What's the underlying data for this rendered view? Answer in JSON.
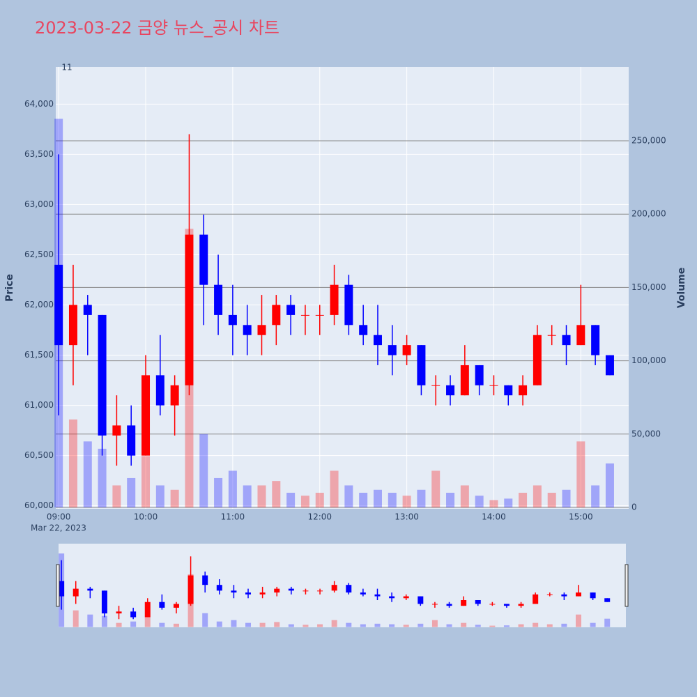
{
  "chart_data": {
    "type": "candlestick",
    "title": "2023-03-22 금양 뉴스_공시 차트",
    "x": [
      "2023-03-22 09:00",
      "2023-03-22 09:10",
      "2023-03-22 09:20",
      "2023-03-22 09:30",
      "2023-03-22 09:40",
      "2023-03-22 09:50",
      "2023-03-22 10:00",
      "2023-03-22 10:10",
      "2023-03-22 10:20",
      "2023-03-22 10:30",
      "2023-03-22 10:40",
      "2023-03-22 10:50",
      "2023-03-22 11:00",
      "2023-03-22 11:10",
      "2023-03-22 11:20",
      "2023-03-22 11:30",
      "2023-03-22 11:40",
      "2023-03-22 11:50",
      "2023-03-22 12:00",
      "2023-03-22 12:10",
      "2023-03-22 12:20",
      "2023-03-22 12:30",
      "2023-03-22 12:40",
      "2023-03-22 12:50",
      "2023-03-22 13:00",
      "2023-03-22 13:10",
      "2023-03-22 13:20",
      "2023-03-22 13:30",
      "2023-03-22 13:40",
      "2023-03-22 13:50",
      "2023-03-22 14:00",
      "2023-03-22 14:10",
      "2023-03-22 14:20",
      "2023-03-22 14:30",
      "2023-03-22 14:40",
      "2023-03-22 14:50",
      "2023-03-22 15:00",
      "2023-03-22 15:10",
      "2023-03-22 15:20"
    ],
    "open": [
      62400,
      61600,
      62000,
      61900,
      60700,
      60800,
      60500,
      61300,
      61000,
      61200,
      62700,
      62200,
      61900,
      61800,
      61700,
      61800,
      62000,
      61900,
      61900,
      61900,
      62200,
      61800,
      61700,
      61600,
      61500,
      61600,
      61200,
      61200,
      61100,
      61400,
      61200,
      61200,
      61100,
      61200,
      61700,
      61700,
      61600,
      61800,
      61500
    ],
    "high": [
      63500,
      62400,
      62100,
      61900,
      61100,
      61000,
      61500,
      61700,
      61300,
      63700,
      62900,
      62500,
      62200,
      62000,
      62100,
      62100,
      62100,
      62000,
      62000,
      62400,
      62300,
      62000,
      62000,
      61800,
      61700,
      61600,
      61300,
      61300,
      61600,
      61400,
      61300,
      61200,
      61300,
      61800,
      61800,
      61800,
      62200,
      61800,
      61500
    ],
    "low": [
      60900,
      61200,
      61500,
      60500,
      60400,
      60400,
      60500,
      60900,
      60700,
      61100,
      61800,
      61700,
      61500,
      61500,
      61500,
      61600,
      61700,
      61700,
      61700,
      61800,
      61700,
      61600,
      61400,
      61300,
      61400,
      61100,
      61000,
      61000,
      61100,
      61100,
      61100,
      61000,
      61000,
      61200,
      61600,
      61400,
      61600,
      61400,
      61300
    ],
    "close": [
      61600,
      62000,
      61900,
      60700,
      60800,
      60500,
      61300,
      61000,
      61200,
      62700,
      62200,
      61900,
      61800,
      61700,
      61800,
      62000,
      61900,
      61900,
      61900,
      62200,
      61800,
      61700,
      61600,
      61500,
      61600,
      61200,
      61200,
      61100,
      61400,
      61200,
      61200,
      61100,
      61200,
      61700,
      61700,
      61600,
      61800,
      61500,
      61300
    ],
    "volume": [
      265000,
      60000,
      45000,
      40000,
      15000,
      20000,
      35000,
      15000,
      12000,
      190000,
      50000,
      20000,
      25000,
      15000,
      15000,
      18000,
      10000,
      8000,
      10000,
      25000,
      15000,
      10000,
      12000,
      10000,
      8000,
      12000,
      25000,
      10000,
      15000,
      8000,
      5000,
      6000,
      10000,
      15000,
      10000,
      12000,
      45000,
      15000,
      30000
    ],
    "increasing_color": "#ff0000",
    "decreasing_color": "#0000ff",
    "xlim": [
      "2023-03-22 08:58",
      "2023-03-22 15:33"
    ],
    "xticks": [
      {
        "value": "2023-03-22 09:00",
        "label": "09:00"
      },
      {
        "value": "2023-03-22 10:00",
        "label": "10:00"
      },
      {
        "value": "2023-03-22 11:00",
        "label": "11:00"
      },
      {
        "value": "2023-03-22 12:00",
        "label": "12:00"
      },
      {
        "value": "2023-03-22 13:00",
        "label": "13:00"
      },
      {
        "value": "2023-03-22 14:00",
        "label": "14:00"
      },
      {
        "value": "2023-03-22 15:00",
        "label": "15:00"
      }
    ],
    "x_date_label": "Mar 22, 2023",
    "ylim": [
      59970,
      64370
    ],
    "yticks": [
      {
        "value": 60000,
        "label": "60,000"
      },
      {
        "value": 60500,
        "label": "60,500"
      },
      {
        "value": 61000,
        "label": "61,000"
      },
      {
        "value": 61500,
        "label": "61,500"
      },
      {
        "value": 62000,
        "label": "62,000"
      },
      {
        "value": 62500,
        "label": "62,500"
      },
      {
        "value": 63000,
        "label": "63,000"
      },
      {
        "value": 63500,
        "label": "63,500"
      },
      {
        "value": 64000,
        "label": "64,000"
      }
    ],
    "y2lim": [
      -950,
      300400
    ],
    "y2ticks": [
      0,
      {
        "value": 50000,
        "label": "50,000"
      },
      {
        "value": 100000,
        "label": "100,000"
      },
      {
        "value": 150000,
        "label": "150,000"
      },
      {
        "value": 200000,
        "label": "200,000"
      },
      {
        "value": 250000,
        "label": "250,000"
      }
    ],
    "y_label": "Price",
    "y2_label": "Volume",
    "annotation": 11,
    "rangeslider": true
  }
}
